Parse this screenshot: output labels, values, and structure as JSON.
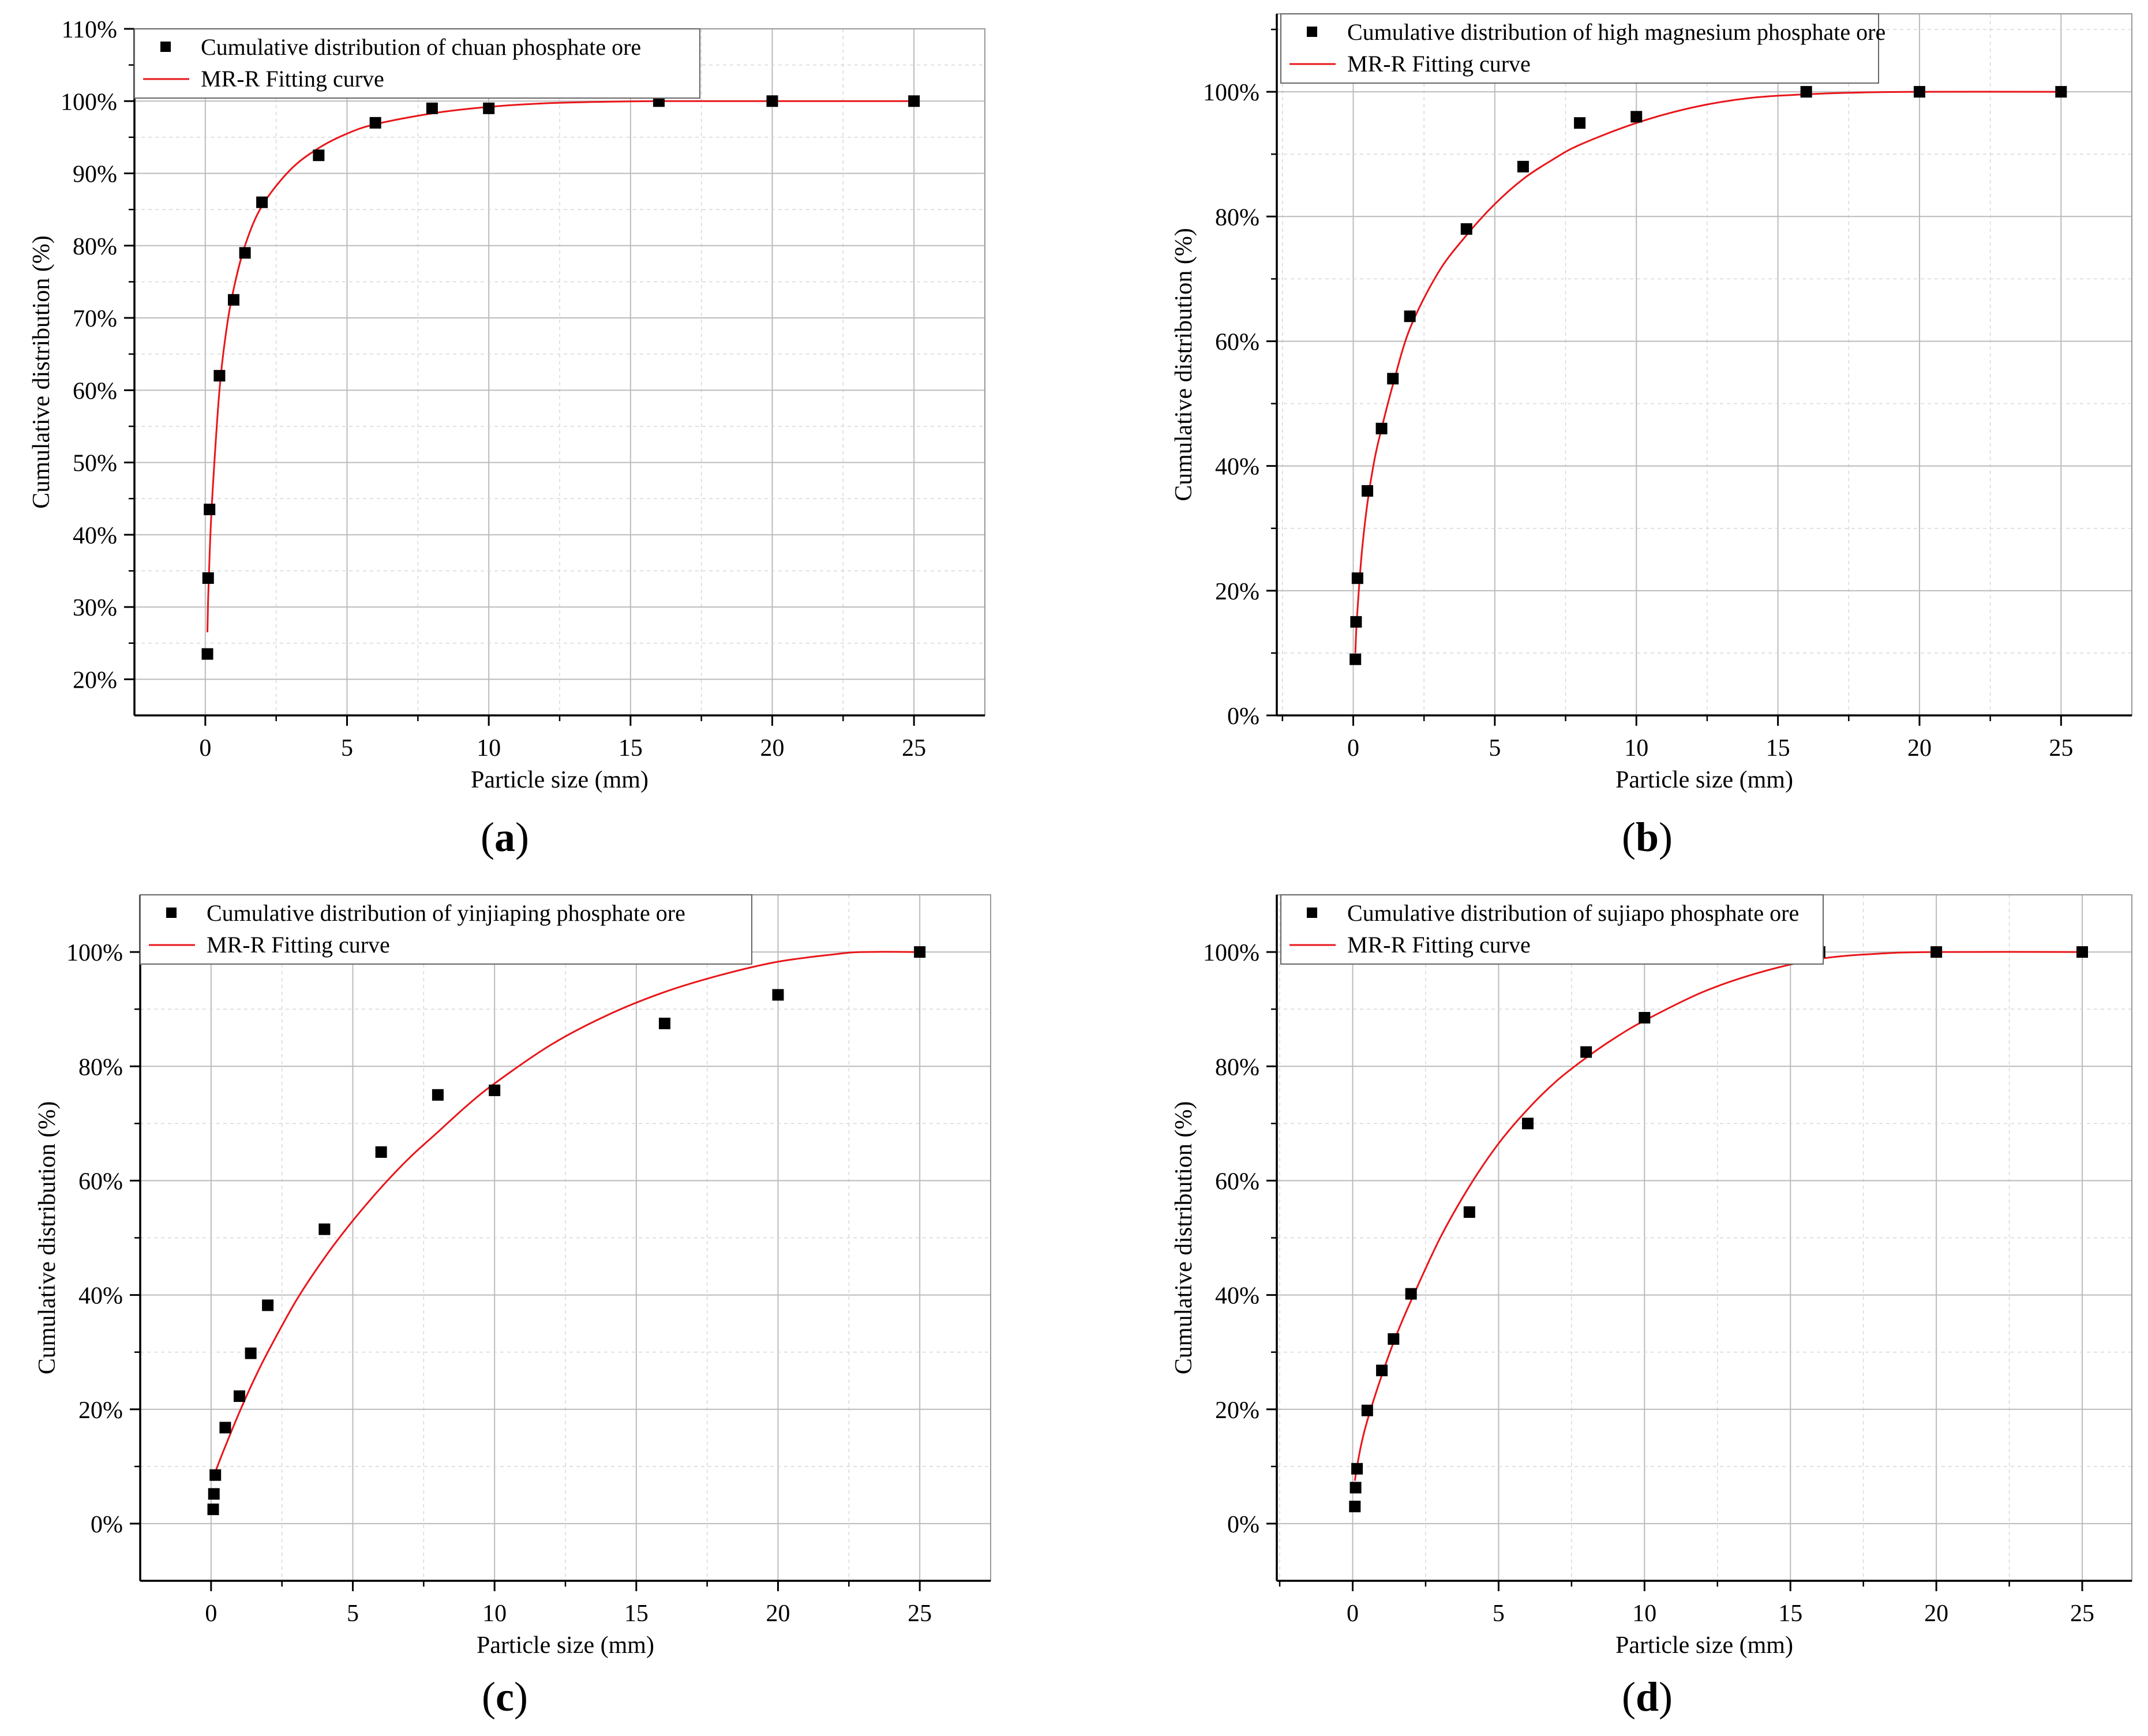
{
  "chart_data": [
    {
      "type": "scatter",
      "panel_label": "a",
      "xlabel": "Particle size (mm)",
      "ylabel": "Cumulative distribution (%)",
      "xlim": [
        -2.5,
        27.5
      ],
      "ylim": [
        15,
        110
      ],
      "xticks": [
        0,
        5,
        10,
        15,
        20,
        25
      ],
      "yticks": [
        20,
        30,
        40,
        50,
        60,
        70,
        80,
        90,
        100,
        110
      ],
      "ytick_labels": [
        "20%",
        "30%",
        "40%",
        "50%",
        "60%",
        "70%",
        "80%",
        "90%",
        "100%",
        "110%"
      ],
      "grid": true,
      "legend": {
        "position": "top",
        "entries": [
          "Cumulative distribution of chuan phosphate ore",
          "MR-R Fitting curve"
        ]
      },
      "series": [
        {
          "name": "Cumulative distribution of chuan phosphate ore",
          "kind": "points",
          "x": [
            0.075,
            0.1,
            0.15,
            0.5,
            1,
            1.4,
            2,
            4,
            6,
            8,
            10,
            16,
            20,
            25
          ],
          "y": [
            23.5,
            34,
            43.5,
            62,
            72.5,
            79,
            86,
            92.5,
            97,
            99,
            99,
            100,
            100,
            100
          ]
        },
        {
          "name": "MR-R Fitting curve",
          "kind": "line",
          "x": [
            0.075,
            0.1,
            0.15,
            0.25,
            0.5,
            0.75,
            1,
            1.4,
            2,
            3,
            4,
            5,
            6,
            8,
            10,
            12,
            14,
            16,
            20,
            25
          ],
          "y": [
            26.5,
            31,
            37,
            45.5,
            60,
            68.5,
            74,
            80,
            85.5,
            90.5,
            93.5,
            95.5,
            96.8,
            98.3,
            99.2,
            99.7,
            99.9,
            100,
            100,
            100
          ]
        }
      ]
    },
    {
      "type": "scatter",
      "panel_label": "b",
      "xlabel": "Particle size (mm)",
      "ylabel": "Cumulative distribution (%)",
      "xlim": [
        -2.7,
        27.5
      ],
      "ylim": [
        0,
        112.5
      ],
      "xticks": [
        0,
        5,
        10,
        15,
        20,
        25
      ],
      "yticks": [
        0,
        20,
        40,
        60,
        80,
        100
      ],
      "ytick_labels": [
        "0%",
        "20%",
        "40%",
        "60%",
        "80%",
        "100%"
      ],
      "grid": true,
      "legend": {
        "position": "top",
        "entries": [
          "Cumulative distribution of high magnesium phosphate ore",
          "MR-R Fitting curve"
        ]
      },
      "series": [
        {
          "name": "Cumulative distribution of high magnesium phosphate ore",
          "kind": "points",
          "x": [
            0.075,
            0.1,
            0.15,
            0.5,
            1,
            1.4,
            2,
            4,
            6,
            8,
            10,
            16,
            20,
            25
          ],
          "y": [
            9,
            15,
            22,
            36,
            46,
            54,
            64,
            78,
            88,
            95,
            96,
            100,
            100,
            100
          ]
        },
        {
          "name": "MR-R Fitting curve",
          "kind": "line",
          "x": [
            0.075,
            0.1,
            0.15,
            0.3,
            0.5,
            0.75,
            1,
            1.4,
            2,
            3,
            4,
            5,
            6,
            7,
            8,
            10,
            12,
            14,
            16,
            18,
            20,
            25
          ],
          "y": [
            10,
            13,
            17,
            26,
            34,
            41,
            46,
            53,
            62,
            71,
            77,
            82,
            86,
            89,
            91.5,
            95,
            97.5,
            99,
            99.6,
            99.9,
            100,
            100
          ]
        }
      ]
    },
    {
      "type": "scatter",
      "panel_label": "c",
      "xlabel": "Particle size (mm)",
      "ylabel": "Cumulative distribution (%)",
      "xlim": [
        -2.5,
        27.5
      ],
      "ylim": [
        -10,
        110
      ],
      "xticks": [
        0,
        5,
        10,
        15,
        20,
        25
      ],
      "yticks": [
        0,
        20,
        40,
        60,
        80,
        100
      ],
      "ytick_labels": [
        "0%",
        "20%",
        "40%",
        "60%",
        "80%",
        "100%"
      ],
      "grid": true,
      "legend": {
        "position": "top",
        "entries": [
          "Cumulative distribution of yinjiaping phosphate ore",
          "MR-R Fitting curve"
        ]
      },
      "series": [
        {
          "name": "Cumulative distribution of yinjiaping phosphate ore",
          "kind": "points",
          "x": [
            0.075,
            0.1,
            0.15,
            0.5,
            1,
            1.4,
            2,
            4,
            6,
            8,
            10,
            16,
            20,
            25
          ],
          "y": [
            2.5,
            5.2,
            8.5,
            16.8,
            22.3,
            29.8,
            38.2,
            51.5,
            65,
            75,
            75.8,
            87.5,
            92.5,
            100
          ]
        },
        {
          "name": "MR-R Fitting curve",
          "kind": "line",
          "x": [
            0.075,
            0.15,
            0.3,
            0.5,
            1,
            1.5,
            2,
            3,
            4,
            5,
            6,
            7,
            8,
            9,
            10,
            12,
            14,
            16,
            18,
            20,
            22,
            23,
            25
          ],
          "y": [
            7.5,
            9,
            11,
            13.5,
            19.5,
            25,
            30,
            39,
            46.5,
            53,
            58.8,
            64,
            68.5,
            73,
            77,
            83.8,
            89,
            93,
            96,
            98.3,
            99.6,
            100,
            100
          ]
        }
      ]
    },
    {
      "type": "scatter",
      "panel_label": "d",
      "xlabel": "Particle size (mm)",
      "ylabel": "Cumulative distribution (%)",
      "xlim": [
        -2.6,
        26.7
      ],
      "ylim": [
        -10,
        110
      ],
      "xticks": [
        0,
        5,
        10,
        15,
        20,
        25
      ],
      "yticks": [
        0,
        20,
        40,
        60,
        80,
        100
      ],
      "ytick_labels": [
        "0%",
        "20%",
        "40%",
        "60%",
        "80%",
        "100%"
      ],
      "grid": true,
      "legend": {
        "position": "top",
        "entries": [
          "Cumulative distribution of sujiapo phosphate ore",
          "MR-R Fitting curve"
        ]
      },
      "series": [
        {
          "name": "Cumulative distribution of sujiapo phosphate ore",
          "kind": "points",
          "x": [
            0.075,
            0.1,
            0.15,
            0.5,
            1,
            1.4,
            2,
            4,
            6,
            8,
            10,
            16,
            20,
            25
          ],
          "y": [
            3,
            6.3,
            9.6,
            19.8,
            26.8,
            32.3,
            40.2,
            54.5,
            70,
            82.5,
            88.5,
            100,
            100,
            100
          ]
        },
        {
          "name": "MR-R Fitting curve",
          "kind": "line",
          "x": [
            0.075,
            0.15,
            0.3,
            0.5,
            1,
            1.5,
            2,
            3,
            4,
            5,
            6,
            7,
            8,
            9,
            10,
            12,
            14,
            16,
            18,
            20,
            25
          ],
          "y": [
            7.5,
            10,
            14,
            18,
            26,
            33,
            39,
            50,
            59,
            66.5,
            72.5,
            77.5,
            81.5,
            85,
            88,
            93,
            96.5,
            98.8,
            99.7,
            100,
            100
          ]
        }
      ]
    }
  ],
  "colors": {
    "points": "#000000",
    "fit_line": "#e8161a",
    "grid_major": "#bbbbbb",
    "grid_minor": "#d8d8d8",
    "axes": "#000000"
  },
  "captions": [
    "(a)",
    "(b)",
    "(c)",
    "(d)"
  ]
}
